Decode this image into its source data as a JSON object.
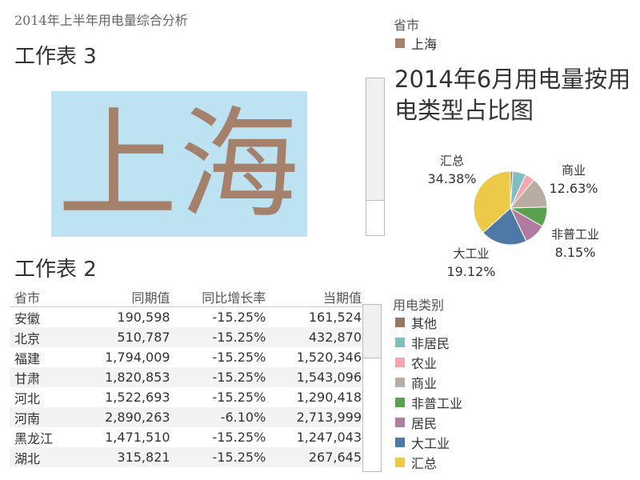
{
  "dashboard_title": "2014年上半年用电量综合分析",
  "worksheet3": {
    "title": "工作表 3",
    "province": "上海",
    "colors": {
      "background": "#bde3f2",
      "text": "#a5806a"
    }
  },
  "worksheet2": {
    "title": "工作表 2",
    "headers": [
      "省市",
      "同期值",
      "同比增长率",
      "当期值"
    ],
    "rows": [
      [
        "安徽",
        "190,598",
        "-15.25%",
        "161,524"
      ],
      [
        "北京",
        "510,787",
        "-15.25%",
        "432,870"
      ],
      [
        "福建",
        "1,794,009",
        "-15.25%",
        "1,520,346"
      ],
      [
        "甘肃",
        "1,820,853",
        "-15.25%",
        "1,543,096"
      ],
      [
        "河北",
        "1,522,693",
        "-15.25%",
        "1,290,418"
      ],
      [
        "河南",
        "2,890,263",
        "-6.10%",
        "2,713,999"
      ],
      [
        "黑龙江",
        "1,471,510",
        "-15.25%",
        "1,247,043"
      ],
      [
        "湖北",
        "315,821",
        "-15.25%",
        "267,645"
      ]
    ]
  },
  "legend_province": {
    "title": "省市",
    "item": "上海",
    "color": "#a5806a"
  },
  "chart_data": {
    "type": "pie",
    "title": "2014年6月用电量按用电类型占比图",
    "legend_title": "用电类别",
    "categories": [
      "其他",
      "非居民",
      "农业",
      "商业",
      "非普工业",
      "居民",
      "大工业",
      "汇总"
    ],
    "colors": [
      "#9c7560",
      "#7fbfbf",
      "#f4a5ae",
      "#b8aca3",
      "#59a14f",
      "#b07aa1",
      "#4e79a7",
      "#edc948"
    ],
    "values": [
      1.0,
      5.5,
      3.9,
      12.63,
      8.15,
      9.0,
      19.12,
      34.38
    ],
    "labels": [
      {
        "category": "汇总",
        "name": "汇总",
        "value": "34.38%"
      },
      {
        "category": "商业",
        "name": "商业",
        "value": "12.63%"
      },
      {
        "category": "非普工业",
        "name": "非普工业",
        "value": "8.15%"
      },
      {
        "category": "大工业",
        "name": "大工业",
        "value": "19.12%"
      }
    ]
  }
}
